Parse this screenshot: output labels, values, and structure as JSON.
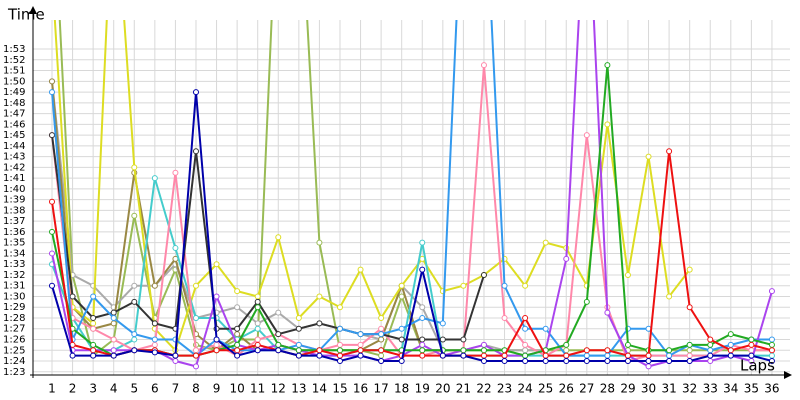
{
  "chart_data": {
    "type": "line",
    "x_label": "Laps",
    "y_label": "Time",
    "grid": true,
    "categories": [
      1,
      2,
      3,
      4,
      5,
      6,
      7,
      8,
      9,
      10,
      11,
      12,
      13,
      14,
      15,
      16,
      17,
      18,
      19,
      20,
      21,
      22,
      23,
      24,
      25,
      26,
      27,
      28,
      29,
      30,
      31,
      32,
      33,
      34,
      35,
      36
    ],
    "ylim": [
      82.7,
      115.7
    ],
    "yticks": [
      {
        "value": 83,
        "label": "1:23"
      },
      {
        "value": 84,
        "label": "1:24"
      },
      {
        "value": 85,
        "label": "1:25"
      },
      {
        "value": 86,
        "label": "1:26"
      },
      {
        "value": 87,
        "label": "1:27"
      },
      {
        "value": 88,
        "label": "1:28"
      },
      {
        "value": 89,
        "label": "1:29"
      },
      {
        "value": 90,
        "label": "1:30"
      },
      {
        "value": 91,
        "label": "1:31"
      },
      {
        "value": 92,
        "label": "1:32"
      },
      {
        "value": 93,
        "label": "1:33"
      },
      {
        "value": 94,
        "label": "1:34"
      },
      {
        "value": 95,
        "label": "1:35"
      },
      {
        "value": 96,
        "label": "1:36"
      },
      {
        "value": 97,
        "label": "1:37"
      },
      {
        "value": 98,
        "label": "1:38"
      },
      {
        "value": 99,
        "label": "1:39"
      },
      {
        "value": 100,
        "label": "1:40"
      },
      {
        "value": 101,
        "label": "1:41"
      },
      {
        "value": 102,
        "label": "1:42"
      },
      {
        "value": 103,
        "label": "1:43"
      },
      {
        "value": 104,
        "label": "1:44"
      },
      {
        "value": 105,
        "label": "1:45"
      },
      {
        "value": 106,
        "label": "1:46"
      },
      {
        "value": 107,
        "label": "1:47"
      },
      {
        "value": 108,
        "label": "1:48"
      },
      {
        "value": 109,
        "label": "1:49"
      },
      {
        "value": 110,
        "label": "1:50"
      },
      {
        "value": 111,
        "label": "1:51"
      },
      {
        "value": 112,
        "label": "1:52"
      },
      {
        "value": 113,
        "label": "1:53"
      }
    ],
    "series": [
      {
        "color": "#99bb55",
        "values": [
          130,
          92,
          84.5,
          86,
          97.5,
          88,
          92.5,
          85.5,
          85,
          86,
          86,
          130,
          130,
          95,
          85,
          85,
          84.5,
          90,
          85,
          85,
          85,
          85,
          85,
          85,
          85,
          85,
          85,
          85,
          85,
          85,
          85,
          85,
          85,
          85,
          85,
          85
        ]
      },
      {
        "color": "#aaaaaa",
        "values": [
          110,
          92,
          91,
          89,
          91,
          91,
          93,
          88,
          88.5,
          89,
          87.5,
          88.5,
          87,
          87.5,
          87,
          86.5,
          86,
          91,
          89,
          85,
          85,
          85.5,
          85,
          85,
          85,
          null,
          null,
          null,
          null,
          null,
          null,
          null,
          null,
          null,
          null,
          null
        ]
      },
      {
        "color": "#998844",
        "values": [
          110,
          89,
          87,
          87.5,
          101.5,
          91,
          93.5,
          86.5,
          85,
          86.5,
          85,
          85.5,
          85,
          85,
          85,
          85,
          86,
          91,
          85,
          85,
          null,
          null,
          null,
          null,
          null,
          null,
          null,
          null,
          null,
          null,
          null,
          null,
          null,
          null,
          null,
          null
        ]
      },
      {
        "color": "#dddd22",
        "values": [
          120,
          89,
          87.5,
          130,
          102,
          87,
          85,
          91,
          93,
          90.5,
          90,
          95.5,
          88,
          90,
          89,
          92.5,
          88,
          91,
          93.5,
          90.5,
          91,
          92,
          93.5,
          91,
          95,
          94.5,
          91,
          106,
          92,
          103,
          90,
          92.5,
          null,
          null,
          null,
          null
        ]
      },
      {
        "color": "#44cccc",
        "values": [
          93,
          88,
          85,
          85,
          86,
          101,
          94.5,
          88,
          88,
          86,
          87,
          85,
          84.5,
          84.5,
          84.5,
          85,
          85,
          85,
          95,
          84.5,
          84.5,
          84.5,
          84.5,
          84.5,
          84.5,
          84.5,
          84.5,
          84.5,
          84.5,
          84.5,
          84.5,
          84.5,
          84.5,
          84.5,
          84.5,
          84.5
        ]
      },
      {
        "color": "#ff88aa",
        "values": [
          105,
          88,
          87,
          86,
          85,
          85.5,
          101.5,
          85,
          85.5,
          84.5,
          86,
          86.5,
          85.5,
          85,
          85.5,
          85.5,
          87,
          84.5,
          84.5,
          85,
          85,
          111.5,
          88,
          85.5,
          84.5,
          85.5,
          105,
          89,
          84,
          84.5,
          84.5,
          84.5,
          84.5,
          85.5,
          85,
          85
        ]
      },
      {
        "color": "#333333",
        "values": [
          105,
          90,
          88,
          88.5,
          89.5,
          87.5,
          87,
          103.5,
          87,
          87,
          89.5,
          86.5,
          87,
          87.5,
          87,
          86.5,
          86.5,
          86,
          86,
          86,
          86,
          92,
          null,
          null,
          null,
          null,
          null,
          null,
          null,
          null,
          null,
          null,
          null,
          null,
          null,
          null
        ]
      },
      {
        "color": "#3399ee",
        "values": [
          109,
          86,
          90,
          88,
          86.5,
          86,
          86,
          84.5,
          86,
          85,
          85,
          85,
          85.5,
          85,
          87,
          86.5,
          86.5,
          87,
          88,
          87.5,
          130,
          130,
          91,
          87,
          87,
          84.5,
          84.5,
          84.5,
          87,
          87,
          84.5,
          85.5,
          85,
          85.5,
          86,
          86
        ]
      },
      {
        "color": "#aa44ee",
        "values": [
          94,
          85,
          85,
          85,
          85,
          85,
          84,
          83.5,
          90,
          85.5,
          85,
          85.5,
          85,
          84.5,
          84.5,
          84.5,
          84,
          84.5,
          85.5,
          84.5,
          85,
          85.5,
          84.5,
          84.5,
          85,
          93.5,
          130,
          88.5,
          84.5,
          83.5,
          84,
          84,
          84,
          84.5,
          84,
          90.5
        ]
      },
      {
        "color": "#22aa22",
        "values": [
          96,
          87,
          85.5,
          84.5,
          85,
          85,
          84.5,
          84.5,
          85,
          85.5,
          89,
          85.5,
          85,
          85,
          85,
          85,
          85,
          85,
          85,
          85,
          85,
          85,
          85,
          84.5,
          85,
          85.5,
          89.5,
          111.5,
          85.5,
          85,
          85,
          85.5,
          85.5,
          86.5,
          86,
          85.5
        ]
      },
      {
        "color": "#ee1111",
        "values": [
          98.8,
          85.5,
          85,
          84.5,
          85,
          85,
          84.5,
          84.5,
          85,
          85,
          85.5,
          85,
          84.5,
          85,
          84.5,
          85,
          85,
          84.5,
          84.5,
          84.5,
          84.5,
          84.5,
          84.5,
          88,
          84.5,
          84.5,
          85,
          85,
          84.5,
          84.5,
          103.5,
          89,
          86,
          85,
          85.5,
          85
        ]
      },
      {
        "color": "#0000aa",
        "values": [
          91,
          84.5,
          84.5,
          84.5,
          85,
          84.8,
          84.5,
          109,
          86,
          84.5,
          85,
          85,
          84.5,
          84.5,
          84,
          84.5,
          84,
          84,
          92.5,
          84.5,
          84.5,
          84,
          84,
          84,
          84,
          84,
          84,
          84,
          84,
          84,
          84,
          84,
          84.5,
          84.5,
          84.5,
          84
        ]
      }
    ]
  }
}
